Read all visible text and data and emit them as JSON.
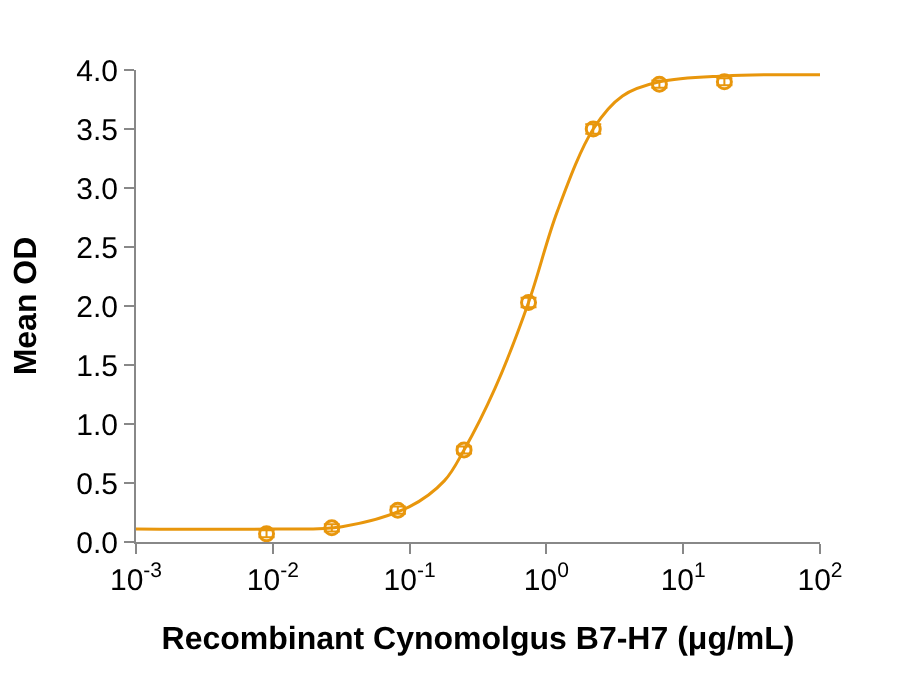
{
  "chart_data": {
    "type": "scatter",
    "xlabel": "Recombinant Cynomolgus B7-H7 (μg/mL)",
    "ylabel": "Mean OD",
    "log": "x",
    "marker": "circle",
    "xlim": [
      0.001,
      100
    ],
    "xticks": [
      {
        "value": 0.001,
        "label": "10$^{-3}$"
      },
      {
        "value": 0.01,
        "label": "10$^{-2}$"
      },
      {
        "value": 0.1,
        "label": "10$^{-1}$"
      },
      {
        "value": 1,
        "label": "10$^{0}$"
      },
      {
        "value": 10,
        "label": "10$^{1}$"
      },
      {
        "value": 100,
        "label": "10$^{2}$"
      }
    ],
    "ylim": [
      0,
      4.0
    ],
    "yticks": [
      {
        "value": 0,
        "label": "0.0"
      },
      {
        "value": 0.5,
        "label": "0.5"
      },
      {
        "value": 1,
        "label": "1.0"
      },
      {
        "value": 1.5,
        "label": "1.5"
      },
      {
        "value": 2,
        "label": "2.0"
      },
      {
        "value": 2.5,
        "label": "2.5"
      },
      {
        "value": 3,
        "label": "3.0"
      },
      {
        "value": 3.5,
        "label": "3.5"
      },
      {
        "value": 4,
        "label": "4.0"
      }
    ],
    "series": [
      {
        "color": "#e8960c",
        "x": [
          0.009,
          0.027,
          0.082,
          0.25,
          0.74,
          2.2,
          6.7,
          20
        ],
        "values": [
          0.07,
          0.12,
          0.27,
          0.78,
          2.03,
          3.5,
          3.88,
          3.9
        ],
        "errors": [
          0.03,
          0.03,
          0.03,
          0.03,
          0.04,
          0.04,
          0.03,
          0.03
        ]
      },
      {
        "type": "line",
        "color": "#e8960c",
        "marker": "none",
        "x": [
          0.001,
          0.01,
          0.032,
          0.1,
          0.18,
          0.25,
          0.42,
          0.74,
          1.2,
          2.2,
          3.6,
          6.7,
          20,
          100
        ],
        "values": [
          0.11,
          0.11,
          0.13,
          0.3,
          0.52,
          0.78,
          1.3,
          2.03,
          2.8,
          3.5,
          3.78,
          3.9,
          3.95,
          3.96
        ]
      }
    ]
  }
}
